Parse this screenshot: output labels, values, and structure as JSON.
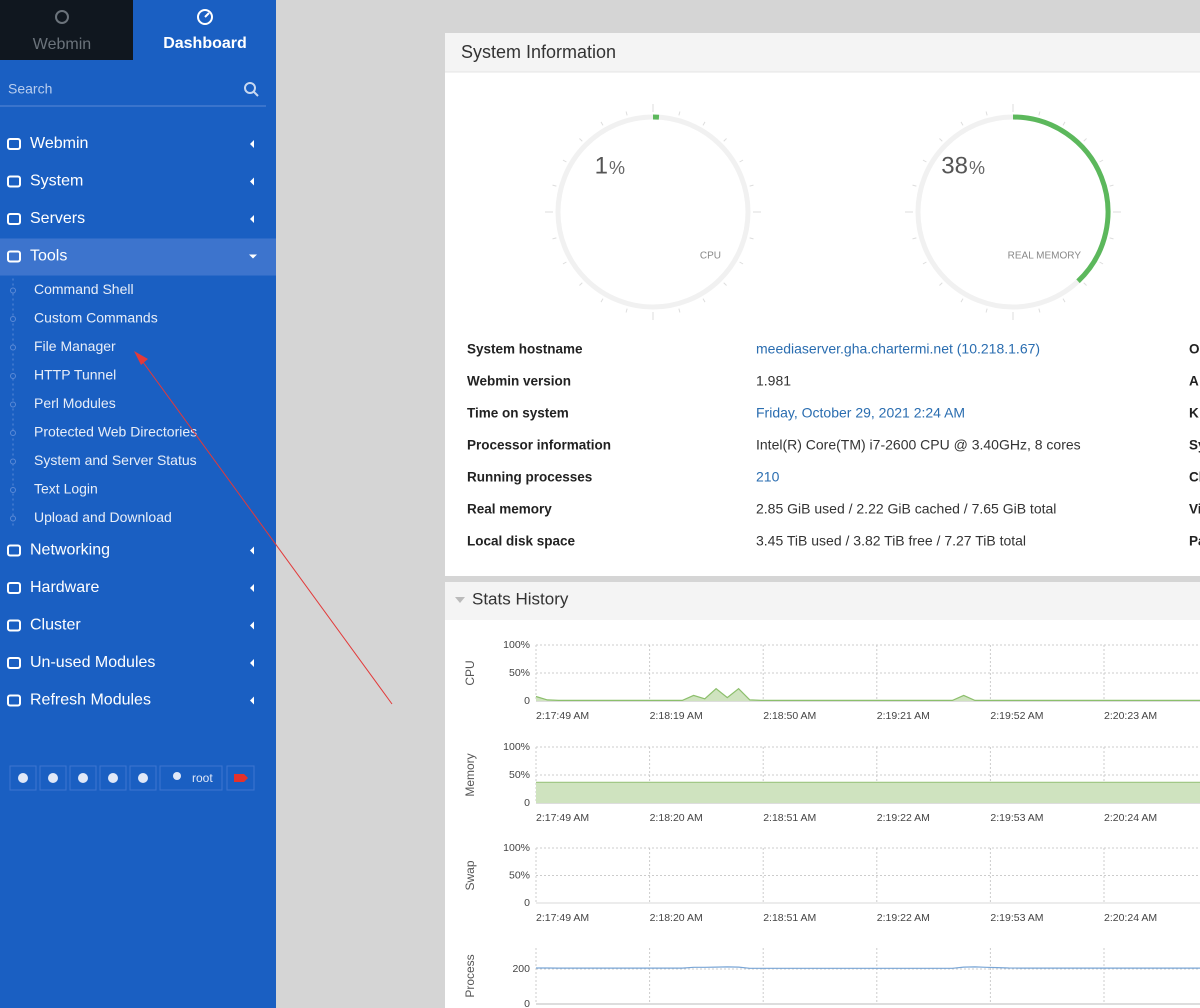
{
  "sidebar": {
    "tabs": [
      "Webmin",
      "Dashboard"
    ],
    "search": "Search",
    "menu": [
      {
        "label": "Webmin"
      },
      {
        "label": "System"
      },
      {
        "label": "Servers"
      },
      {
        "label": "Tools",
        "items": [
          "Command Shell",
          "Custom Commands",
          "File Manager",
          "HTTP Tunnel",
          "Perl Modules",
          "Protected Web Directories",
          "System and Server Status",
          "Text Login",
          "Upload and Download"
        ]
      },
      {
        "label": "Networking"
      },
      {
        "label": "Hardware"
      },
      {
        "label": "Cluster"
      },
      {
        "label": "Un-used Modules"
      },
      {
        "label": "Refresh Modules"
      }
    ],
    "user": "root"
  },
  "system_information": {
    "title": "System Information",
    "gauges": [
      {
        "value": 1,
        "unit": "%",
        "label": "CPU",
        "color": "#5cb85c"
      },
      {
        "value": 38,
        "unit": "%",
        "label": "REAL MEMORY",
        "color": "#5cb85c"
      }
    ],
    "rows": [
      {
        "label": "System hostname",
        "value": "meediaserver.gha.chartermi.net (10.218.1.67)",
        "color": "#2a6db0"
      },
      {
        "label": "Webmin version",
        "value": "1.981"
      },
      {
        "label": "Time on system",
        "value": "Friday, October 29, 2021 2:24 AM",
        "color": "#2a6db0"
      },
      {
        "label": "Processor information",
        "value": "Intel(R) Core(TM) i7-2600 CPU @ 3.40GHz, 8 cores"
      },
      {
        "label": "Running processes",
        "value": "210",
        "color": "#2a6db0"
      },
      {
        "label": "Real memory",
        "value": "2.85 GiB used / 2.22 GiB cached / 7.65 GiB total"
      },
      {
        "label": "Local disk space",
        "value": "3.45 TiB used / 3.82 TiB free / 7.27 TiB total"
      }
    ],
    "right_labels": [
      "O",
      "A",
      "K",
      "Sy",
      "Cl",
      "Vi",
      "Pa"
    ]
  },
  "stats_history": {
    "title": "Stats History",
    "charts": [
      {
        "type": "area",
        "label": "CPU",
        "color": "#8cbf6c",
        "fill": "#cfe3bf",
        "ylim": [
          0,
          100
        ],
        "yticks": [
          0,
          {
            "value": 50,
            "label": "50%"
          },
          {
            "value": 100,
            "label": "100%"
          }
        ],
        "xticks": [
          "2:17:49 AM",
          "2:18:19 AM",
          "2:18:50 AM",
          "2:19:21 AM",
          "2:19:52 AM",
          "2:20:23 AM"
        ],
        "values": [
          8,
          2,
          1,
          1,
          1,
          1,
          1,
          1,
          1,
          1,
          1,
          1,
          1,
          1,
          10,
          4,
          22,
          6,
          22,
          2,
          1,
          1,
          1,
          1,
          1,
          1,
          1,
          1,
          1,
          1,
          1,
          1,
          1,
          1,
          1,
          1,
          1,
          1,
          10,
          1,
          1,
          1,
          1,
          1,
          1,
          1,
          1,
          1,
          1,
          1,
          1,
          1,
          1,
          1,
          1,
          1,
          1,
          1,
          1,
          1
        ]
      },
      {
        "type": "area",
        "label": "Memory",
        "color": "#9cc47f",
        "fill": "#cfe3bf",
        "ylim": [
          0,
          100
        ],
        "yticks": [
          0,
          {
            "value": 50,
            "label": "50%"
          },
          {
            "value": 100,
            "label": "100%"
          }
        ],
        "xticks": [
          "2:17:49 AM",
          "2:18:20 AM",
          "2:18:51 AM",
          "2:19:22 AM",
          "2:19:53 AM",
          "2:20:24 AM"
        ],
        "values": [
          37,
          37,
          37,
          37,
          37,
          37,
          37,
          37,
          37,
          37,
          37,
          37,
          37,
          37,
          37,
          37,
          37,
          37,
          37,
          37,
          37,
          37,
          37,
          37,
          37,
          37,
          37,
          37,
          37,
          37,
          37,
          37,
          37,
          37,
          37,
          37,
          37,
          37,
          37,
          37,
          37,
          37,
          37,
          37,
          37,
          37,
          37,
          37,
          37,
          37,
          37,
          37,
          37,
          37,
          37,
          37,
          37,
          37,
          37,
          37
        ]
      },
      {
        "type": "area",
        "label": "Swap",
        "color": "#e0e0e0",
        "fill": "#f0f0f0",
        "ylim": [
          0,
          100
        ],
        "yticks": [
          0,
          {
            "value": 50,
            "label": "50%"
          },
          {
            "value": 100,
            "label": "100%"
          }
        ],
        "xticks": [
          "2:17:49 AM",
          "2:18:20 AM",
          "2:18:51 AM",
          "2:19:22 AM",
          "2:19:53 AM",
          "2:20:24 AM"
        ],
        "values": [
          0,
          0,
          0,
          0,
          0,
          0,
          0,
          0,
          0,
          0,
          0,
          0,
          0,
          0,
          0,
          0,
          0,
          0,
          0,
          0,
          0,
          0,
          0,
          0,
          0,
          0,
          0,
          0,
          0,
          0,
          0,
          0,
          0,
          0,
          0,
          0,
          0,
          0,
          0,
          0,
          0,
          0,
          0,
          0,
          0,
          0,
          0,
          0,
          0,
          0,
          0,
          0,
          0,
          0,
          0,
          0,
          0,
          0,
          0,
          0
        ]
      },
      {
        "type": "line",
        "label": "Process",
        "color": "#7aa6d6",
        "ylim": [
          0,
          320
        ],
        "yticks": [
          0,
          200
        ],
        "xticks": [],
        "values": [
          206,
          206,
          205,
          205,
          205,
          205,
          205,
          205,
          205,
          205,
          205,
          205,
          205,
          205,
          210,
          210,
          211,
          212,
          211,
          204,
          204,
          204,
          204,
          204,
          204,
          204,
          204,
          204,
          204,
          204,
          204,
          204,
          204,
          204,
          204,
          204,
          204,
          204,
          211,
          212,
          210,
          208,
          206,
          205,
          205,
          205,
          205,
          205,
          205,
          205,
          205,
          205,
          205,
          205,
          205,
          205,
          205,
          205,
          205,
          205
        ]
      }
    ]
  }
}
